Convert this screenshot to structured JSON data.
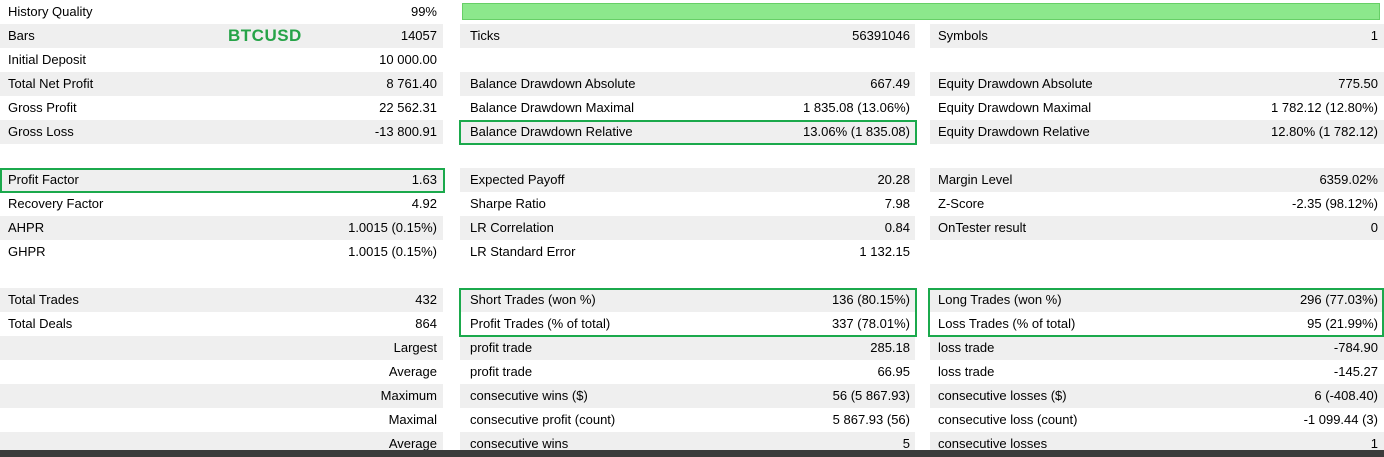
{
  "report": {
    "symbol": "BTCUSD",
    "colors": {
      "accent_green": "#1ba94c",
      "progress_fill": "#8ce88c",
      "row_shade": "#efefef"
    },
    "progress": {
      "label": "99%"
    },
    "highlights": [
      "Balance Drawdown Relative",
      "Profit Factor",
      "Short Trades / Profit Trades",
      "Long Trades / Loss Trades"
    ],
    "rows": [
      {
        "col1_label": "History Quality",
        "col1_value": "99%"
      },
      {
        "col1_label": "Bars",
        "col1_value": "14057",
        "col2_label": "Ticks",
        "col2_value": "56391046",
        "col3_label": "Symbols",
        "col3_value": "1"
      },
      {
        "col1_label": "Initial Deposit",
        "col1_value": "10 000.00"
      },
      {
        "col1_label": "Total Net Profit",
        "col1_value": "8 761.40",
        "col2_label": "Balance Drawdown Absolute",
        "col2_value": "667.49",
        "col3_label": "Equity Drawdown Absolute",
        "col3_value": "775.50"
      },
      {
        "col1_label": "Gross Profit",
        "col1_value": "22 562.31",
        "col2_label": "Balance Drawdown Maximal",
        "col2_value": "1 835.08 (13.06%)",
        "col3_label": "Equity Drawdown Maximal",
        "col3_value": "1 782.12 (12.80%)"
      },
      {
        "col1_label": "Gross Loss",
        "col1_value": "-13 800.91",
        "col2_label": "Balance Drawdown Relative",
        "col2_value": "13.06% (1 835.08)",
        "col3_label": "Equity Drawdown Relative",
        "col3_value": "12.80% (1 782.12)"
      },
      {},
      {
        "col1_label": "Profit Factor",
        "col1_value": "1.63",
        "col2_label": "Expected Payoff",
        "col2_value": "20.28",
        "col3_label": "Margin Level",
        "col3_value": "6359.02%"
      },
      {
        "col1_label": "Recovery Factor",
        "col1_value": "4.92",
        "col2_label": "Sharpe Ratio",
        "col2_value": "7.98",
        "col3_label": "Z-Score",
        "col3_value": "-2.35 (98.12%)"
      },
      {
        "col1_label": "AHPR",
        "col1_value": "1.0015 (0.15%)",
        "col2_label": "LR Correlation",
        "col2_value": "0.84",
        "col3_label": "OnTester result",
        "col3_value": "0"
      },
      {
        "col1_label": "GHPR",
        "col1_value": "1.0015 (0.15%)",
        "col2_label": "LR Standard Error",
        "col2_value": "1 132.15"
      },
      {},
      {
        "col1_label": "Total Trades",
        "col1_value": "432",
        "col2_label": "Short Trades (won %)",
        "col2_value": "136 (80.15%)",
        "col3_label": "Long Trades (won %)",
        "col3_value": "296 (77.03%)"
      },
      {
        "col1_label": "Total Deals",
        "col1_value": "864",
        "col2_label": "Profit Trades (% of total)",
        "col2_value": "337 (78.01%)",
        "col3_label": "Loss Trades (% of total)",
        "col3_value": "95 (21.99%)"
      },
      {
        "col1_value": "Largest",
        "col2_label": "profit trade",
        "col2_value": "285.18",
        "col3_label": "loss trade",
        "col3_value": "-784.90"
      },
      {
        "col1_value": "Average",
        "col2_label": "profit trade",
        "col2_value": "66.95",
        "col3_label": "loss trade",
        "col3_value": "-145.27"
      },
      {
        "col1_value": "Maximum",
        "col2_label": "consecutive wins ($)",
        "col2_value": "56 (5 867.93)",
        "col3_label": "consecutive losses ($)",
        "col3_value": "6 (-408.40)"
      },
      {
        "col1_value": "Maximal",
        "col2_label": "consecutive profit (count)",
        "col2_value": "5 867.93 (56)",
        "col3_label": "consecutive loss (count)",
        "col3_value": "-1 099.44 (3)"
      },
      {
        "col1_value": "Average",
        "col2_label": "consecutive wins",
        "col2_value": "5",
        "col3_label": "consecutive losses",
        "col3_value": "1"
      }
    ]
  }
}
